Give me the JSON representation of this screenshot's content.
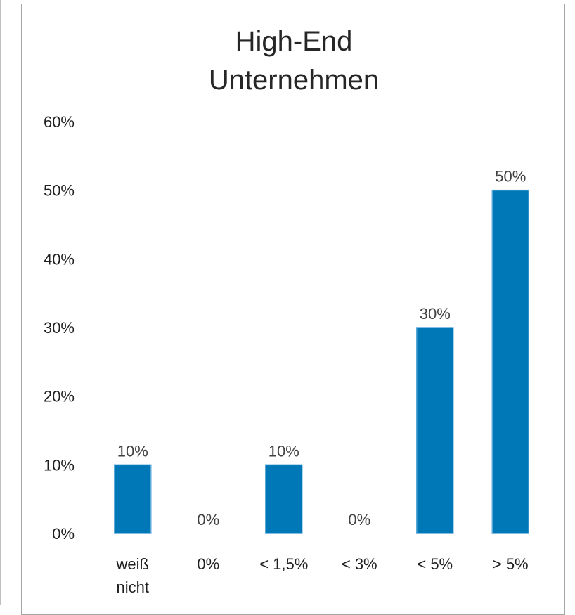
{
  "chart_data": {
    "type": "bar",
    "title": "High-End Unternehmen",
    "title_lines": [
      "High-End",
      "Unternehmen"
    ],
    "categories": [
      "weiß nicht",
      "0%",
      "< 1,5%",
      "< 3%",
      "< 5%",
      "> 5%"
    ],
    "category_lines": [
      [
        "weiß",
        "nicht"
      ],
      [
        "0%"
      ],
      [
        "< 1,5%"
      ],
      [
        "< 3%"
      ],
      [
        "< 5%"
      ],
      [
        "> 5%"
      ]
    ],
    "values": [
      10,
      0,
      10,
      0,
      30,
      50
    ],
    "data_labels": [
      "10%",
      "0%",
      "10%",
      "0%",
      "30%",
      "50%"
    ],
    "xlabel": "",
    "ylabel": "",
    "ylim": [
      0,
      60
    ],
    "y_ticks": [
      "0%",
      "10%",
      "20%",
      "30%",
      "40%",
      "50%",
      "60%"
    ],
    "bar_color": "#0078b8",
    "bar_edge_color": "#5aa8d8",
    "grid": false,
    "legend": "none"
  }
}
